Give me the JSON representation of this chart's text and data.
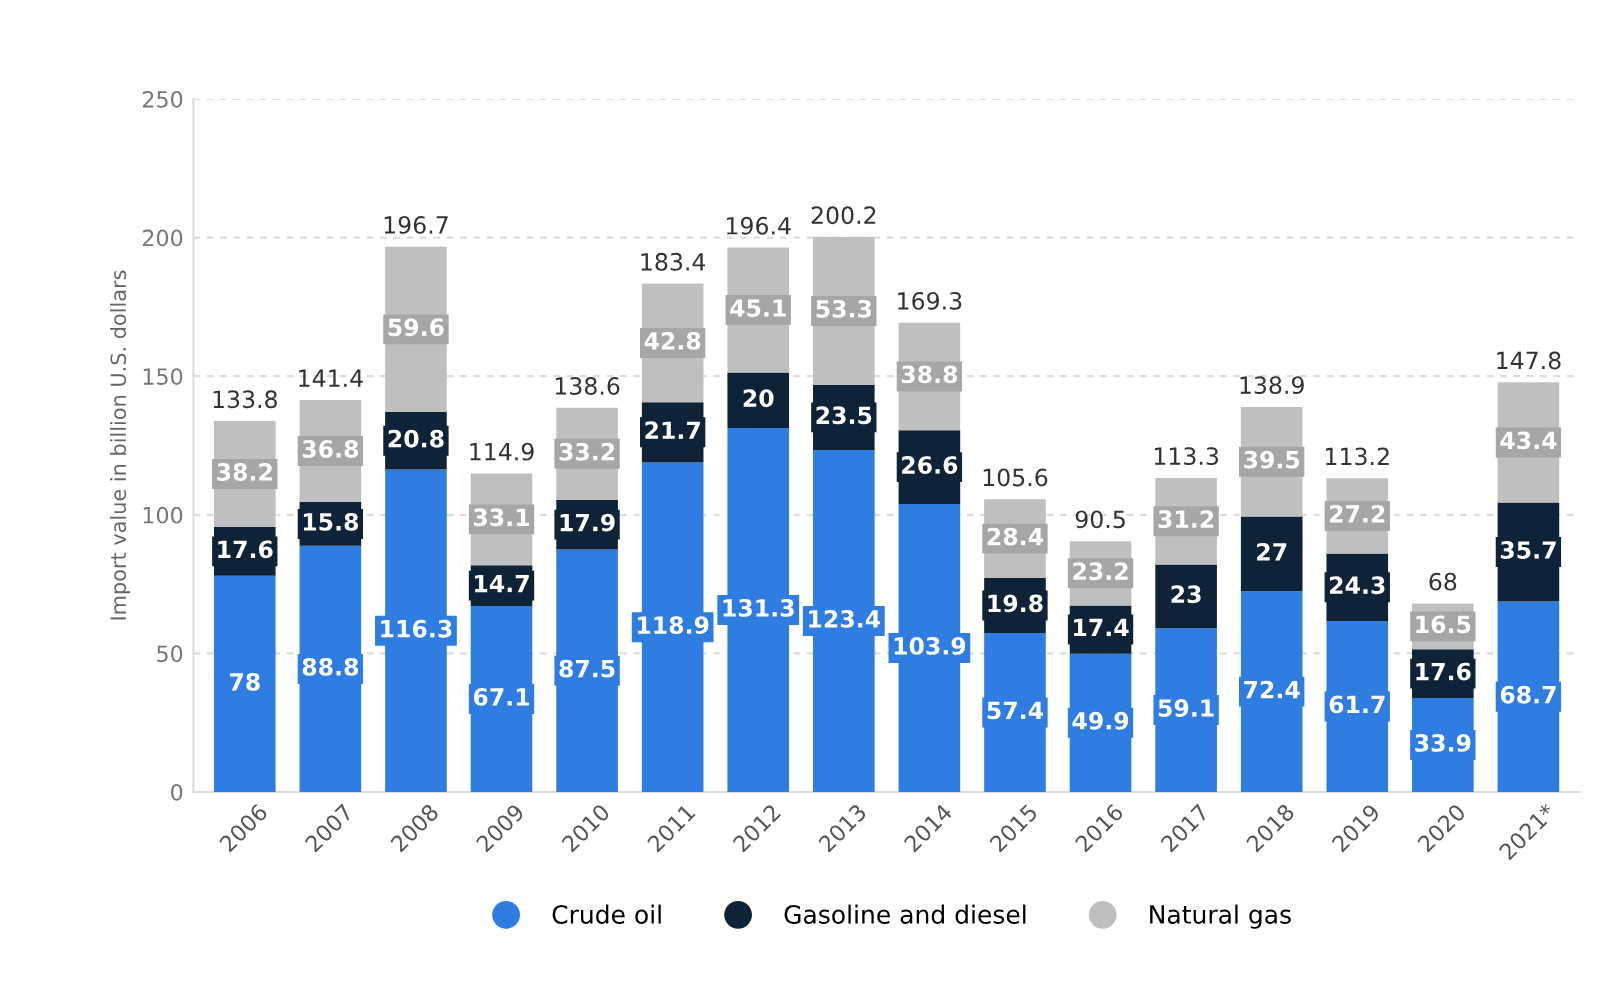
{
  "chart_data": {
    "type": "bar",
    "stacked": true,
    "ylabel": "Import value in billion U.S. dollars",
    "categories": [
      "2006",
      "2007",
      "2008",
      "2009",
      "2010",
      "2011",
      "2012",
      "2013",
      "2014",
      "2015",
      "2016",
      "2017",
      "2018",
      "2019",
      "2020",
      "2021*"
    ],
    "series": [
      {
        "name": "Crude oil",
        "color": "#2f7de1",
        "values": [
          78,
          88.8,
          116.3,
          67.1,
          87.5,
          118.9,
          131.3,
          123.4,
          103.9,
          57.4,
          49.9,
          59.1,
          72.4,
          61.7,
          33.9,
          68.7
        ]
      },
      {
        "name": "Gasoline and diesel",
        "color": "#0e2238",
        "values": [
          17.6,
          15.8,
          20.8,
          14.7,
          17.9,
          21.7,
          20,
          23.5,
          26.6,
          19.8,
          17.4,
          23,
          27,
          24.3,
          17.6,
          35.7
        ]
      },
      {
        "name": "Natural gas",
        "color": "#bfbfbf",
        "values": [
          38.2,
          36.8,
          59.6,
          33.1,
          33.2,
          42.8,
          45.1,
          53.3,
          38.8,
          28.4,
          23.2,
          31.2,
          39.5,
          27.2,
          16.5,
          43.4
        ]
      }
    ],
    "totals": [
      "133.8",
      "141.4",
      "196.7",
      "114.9",
      "138.6",
      "183.4",
      "196.4",
      "200.2",
      "169.3",
      "105.6",
      "90.5",
      "113.3",
      "138.9",
      "113.2",
      "68",
      "147.8"
    ],
    "data_labels": true,
    "ylim": [
      0,
      250
    ],
    "yticks": [
      0,
      50,
      100,
      150,
      200,
      250
    ],
    "grid": "y",
    "legend": "bottom"
  }
}
